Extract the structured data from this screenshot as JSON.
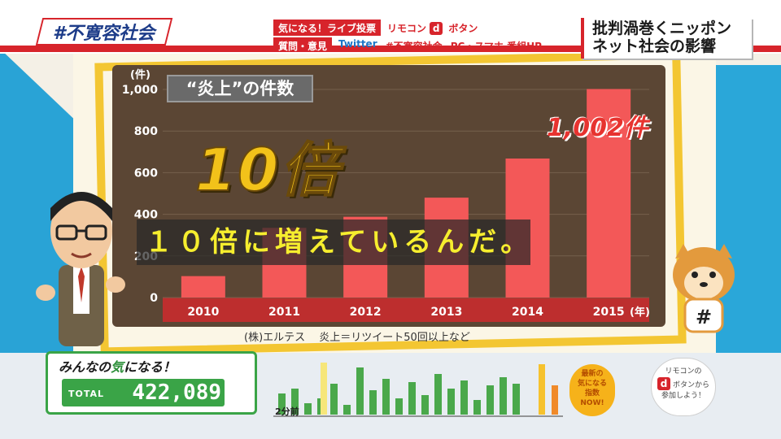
{
  "header": {
    "hashtag": "#不寛容社会",
    "vote_label": "気になる！ライブ投票",
    "remote_label": "リモコン",
    "d_button": "d",
    "button_label": "ボタン",
    "question_label": "質問・意見",
    "twitter_label": "Twitter",
    "twitter_tag": "#不寛容社会",
    "pc_label": "PC・スマホ 番組HP",
    "headline_line1": "批判渦巻くニッポン",
    "headline_line2": "ネット社会の影響"
  },
  "overlay": {
    "ratio_text": "10倍",
    "highlight_value": "1,002件",
    "subtitle": "１０倍に増えているんだ。"
  },
  "chart_data": {
    "type": "bar",
    "title": "“炎上”の件数",
    "unit_label": "(件)",
    "x_unit_label": "(年)",
    "categories": [
      "2010",
      "2011",
      "2012",
      "2013",
      "2014",
      "2015"
    ],
    "values": [
      103,
      335,
      388,
      480,
      668,
      1002
    ],
    "ylim": [
      0,
      1000
    ],
    "yticks": [
      0,
      200,
      400,
      600,
      800,
      1000
    ],
    "ytick_labels": [
      "0",
      "200",
      "400",
      "600",
      "800",
      "1,000"
    ],
    "bar_color": "#f35858",
    "note": "(株)エルテス　 炎上＝リツイート50回以上など"
  },
  "footer": {
    "counter_title_pre": "みんなの",
    "counter_title_green": "気",
    "counter_title_post": "になる！",
    "total_label": "TOTAL",
    "total_value": "422,089",
    "time_label": "2分前",
    "latest_badge_line1": "最新の",
    "latest_badge_line2": "気になる",
    "latest_badge_line3": "指数",
    "latest_badge_line4": "NOW!",
    "remote_hint_line1": "リモコンの",
    "remote_hint_line2": "ボタンから",
    "remote_hint_line3": "参加しよう！"
  }
}
